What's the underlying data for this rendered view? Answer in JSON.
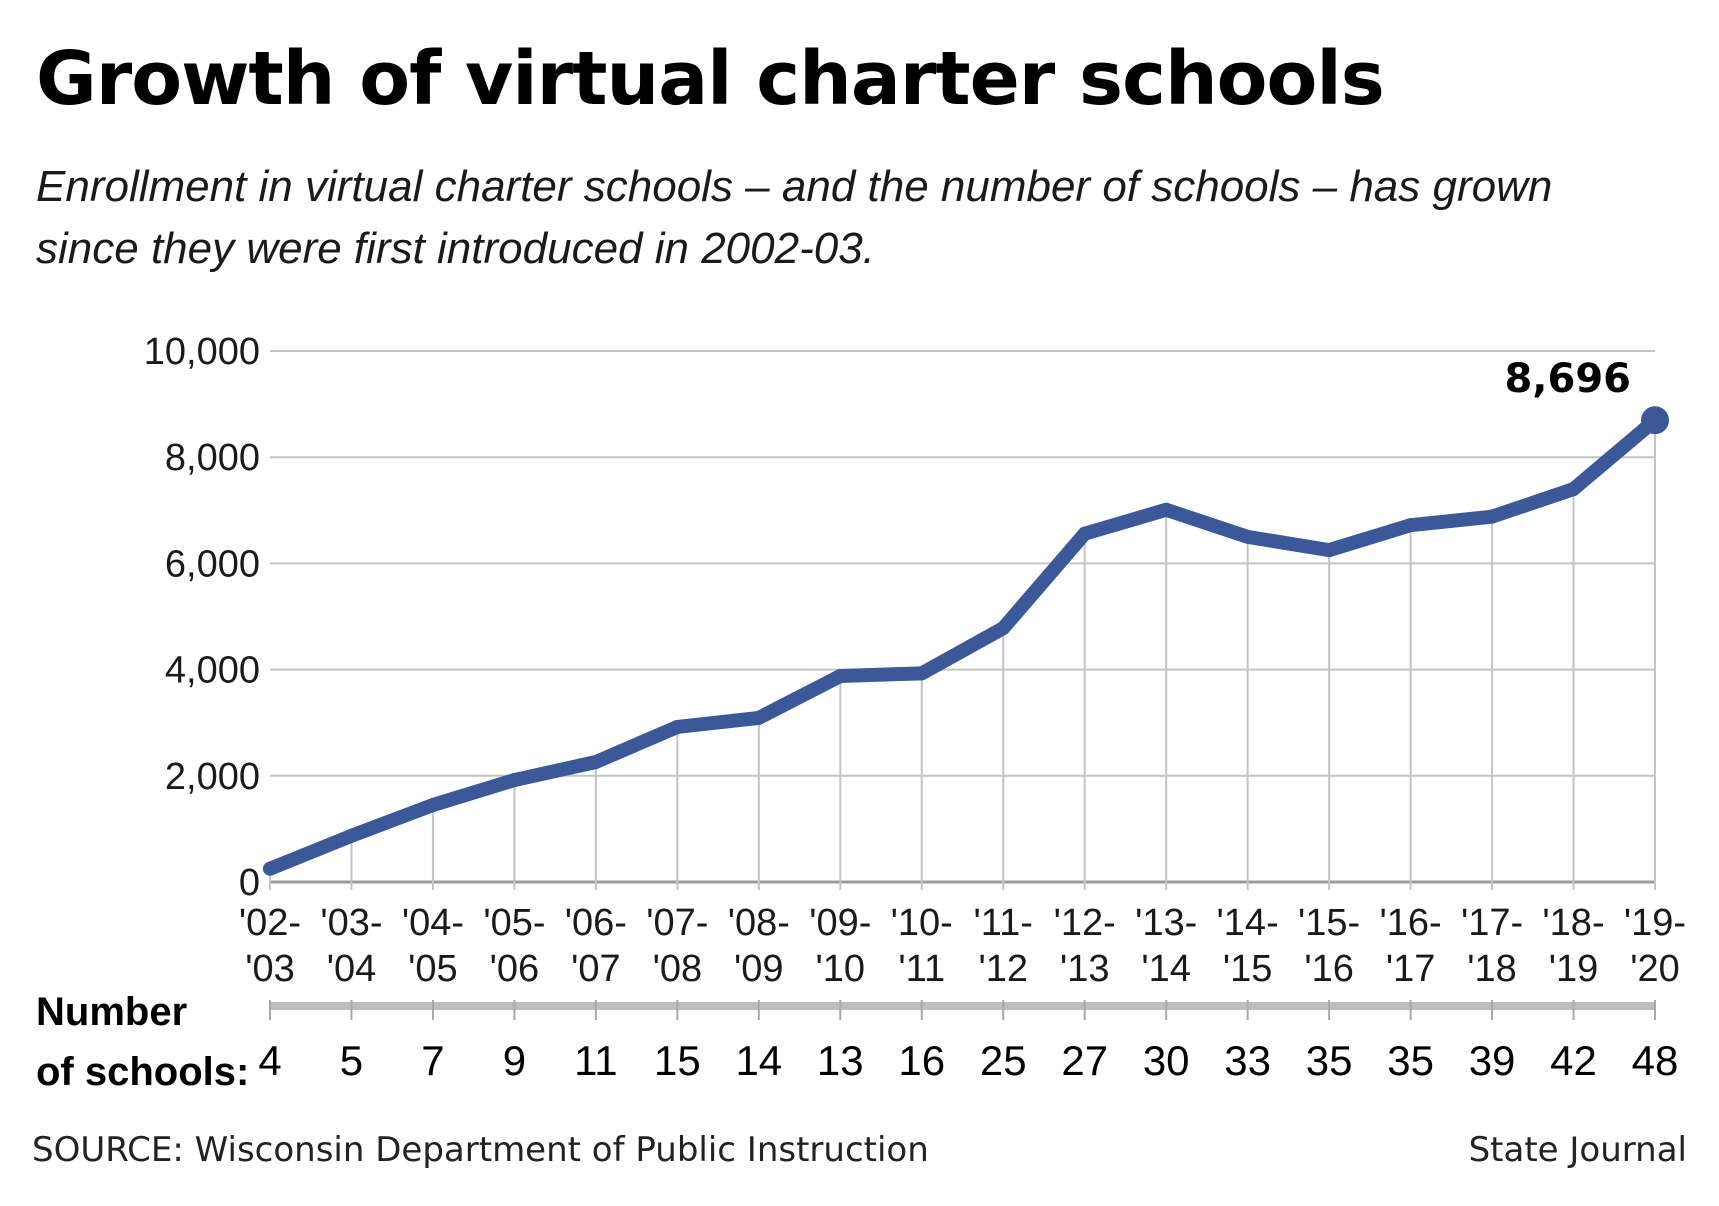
{
  "chart_data": {
    "type": "line",
    "title": "Growth of virtual charter schools",
    "subtitle_lines": [
      "Enrollment in virtual charter schools – and the number of schools – has grown",
      "since they were first introduced in 2002-03."
    ],
    "categories": [
      [
        "'02-",
        "'03"
      ],
      [
        "'03-",
        "'04"
      ],
      [
        "'04-",
        "'05"
      ],
      [
        "'05-",
        "'06"
      ],
      [
        "'06-",
        "'07"
      ],
      [
        "'07-",
        "'08"
      ],
      [
        "'08-",
        "'09"
      ],
      [
        "'09-",
        "'10"
      ],
      [
        "'10-",
        "'11"
      ],
      [
        "'11-",
        "'12"
      ],
      [
        "'12-",
        "'13"
      ],
      [
        "'13-",
        "'14"
      ],
      [
        "'14-",
        "'15"
      ],
      [
        "'15-",
        "'16"
      ],
      [
        "'16-",
        "'17"
      ],
      [
        "'17-",
        "'18"
      ],
      [
        "'18-",
        "'19"
      ],
      [
        "'19-",
        "'20"
      ]
    ],
    "series": [
      {
        "name": "Enrollment",
        "values": [
          250,
          870,
          1450,
          1920,
          2260,
          2920,
          3090,
          3880,
          3930,
          4780,
          6560,
          7010,
          6500,
          6250,
          6720,
          6880,
          7400,
          8696
        ]
      }
    ],
    "number_of_schools": [
      4,
      5,
      7,
      9,
      11,
      15,
      14,
      13,
      16,
      25,
      27,
      30,
      33,
      35,
      35,
      39,
      42,
      48
    ],
    "schools_label_lines": [
      "Number",
      "of schools:"
    ],
    "yticks": [
      0,
      2000,
      4000,
      6000,
      8000,
      10000
    ],
    "ytick_labels": [
      "0",
      "2,000",
      "4,000",
      "6,000",
      "8,000",
      "10,000"
    ],
    "ylim": [
      0,
      10000
    ],
    "annotation": "8,696",
    "xlabel": "",
    "ylabel": "",
    "grid": true,
    "line_color": "#3b5998",
    "grid_color": "#c4c4c4"
  },
  "footer": {
    "source": "SOURCE: Wisconsin Department of Public Instruction",
    "credit": "State Journal"
  }
}
